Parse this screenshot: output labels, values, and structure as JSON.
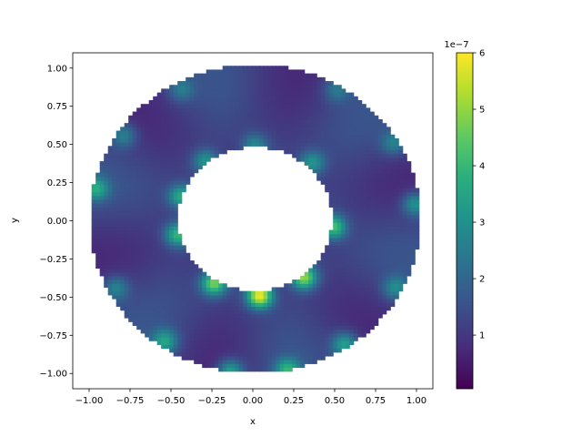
{
  "chart_data": {
    "type": "heatmap",
    "title": "",
    "xlabel": "x",
    "ylabel": "y",
    "xlim": [
      -1.1,
      1.1
    ],
    "ylim": [
      -1.1,
      1.1
    ],
    "xticks": [
      "−1.00",
      "−0.75",
      "−0.50",
      "−0.25",
      "0.00",
      "0.25",
      "0.50",
      "0.75",
      "1.00"
    ],
    "xtick_values": [
      -1.0,
      -0.75,
      -0.5,
      -0.25,
      0.0,
      0.25,
      0.5,
      0.75,
      1.0
    ],
    "yticks": [
      "−1.00",
      "−0.75",
      "−0.50",
      "−0.25",
      "0.00",
      "0.25",
      "0.50",
      "0.75",
      "1.00"
    ],
    "ytick_values": [
      -1.0,
      -0.75,
      -0.5,
      -0.25,
      0.0,
      0.25,
      0.5,
      0.75,
      1.0
    ],
    "domain": {
      "shape": "annulus",
      "center": [
        0.0,
        0.0
      ],
      "inner_radius": 0.47,
      "outer_radius": 1.01
    },
    "colormap": "viridis",
    "colorbar": {
      "min": 0.05,
      "max": 6.0,
      "ticks": [
        "1",
        "2",
        "3",
        "4",
        "5",
        "6"
      ],
      "tick_values": [
        1,
        2,
        3,
        4,
        5,
        6
      ],
      "offset_label": "1e−7"
    },
    "hotspots": [
      {
        "x": 0.03,
        "y": -0.5,
        "value": 6.0
      },
      {
        "x": 0.3,
        "y": -0.38,
        "value": 5.0
      },
      {
        "x": -0.25,
        "y": -0.42,
        "value": 4.8
      },
      {
        "x": 0.48,
        "y": -0.05,
        "value": 4.3
      },
      {
        "x": -0.47,
        "y": -0.1,
        "value": 4.0
      },
      {
        "x": -0.45,
        "y": 0.15,
        "value": 3.8
      },
      {
        "x": 0.35,
        "y": 0.37,
        "value": 3.2
      },
      {
        "x": -0.3,
        "y": 0.38,
        "value": 3.1
      },
      {
        "x": 0.0,
        "y": 0.48,
        "value": 2.9
      },
      {
        "x": -0.97,
        "y": 0.2,
        "value": 3.4
      },
      {
        "x": 0.98,
        "y": 0.1,
        "value": 3.3
      },
      {
        "x": -0.55,
        "y": -0.8,
        "value": 3.4
      },
      {
        "x": 0.55,
        "y": -0.82,
        "value": 3.6
      },
      {
        "x": -0.15,
        "y": -1.0,
        "value": 3.8
      },
      {
        "x": 0.2,
        "y": -0.99,
        "value": 3.7
      },
      {
        "x": -0.8,
        "y": 0.55,
        "value": 2.8
      },
      {
        "x": 0.85,
        "y": 0.5,
        "value": 2.7
      },
      {
        "x": -0.45,
        "y": 0.85,
        "value": 2.5
      },
      {
        "x": 0.5,
        "y": 0.85,
        "value": 2.5
      },
      {
        "x": -0.85,
        "y": -0.45,
        "value": 2.8
      },
      {
        "x": 0.86,
        "y": -0.45,
        "value": 2.9
      }
    ],
    "background_value": 1.2,
    "grid": false,
    "legend": "none"
  }
}
